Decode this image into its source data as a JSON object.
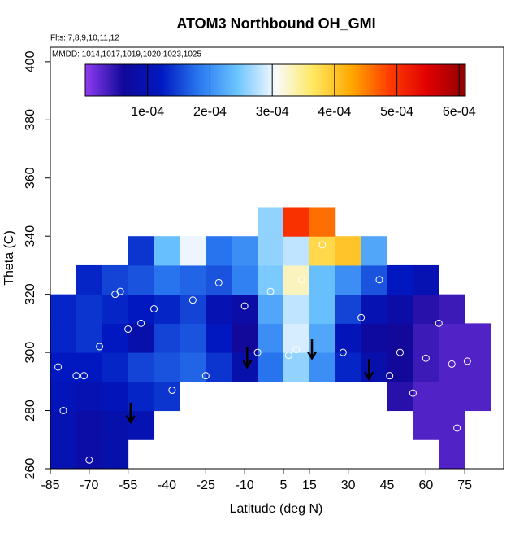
{
  "chart_data": {
    "type": "heatmap",
    "title": "ATOM3 Northbound OH_GMI",
    "annotations": [
      "Flts: 7,8,9,10,11,12",
      "MMDD: 1014,1017,1019,1020,1023,1025"
    ],
    "x_label": "Latitude (deg N)",
    "y_label": "Theta (C)",
    "xlim": [
      -85,
      90
    ],
    "ylim": [
      260,
      405
    ],
    "xticks": [
      -85,
      -70,
      -55,
      -40,
      -25,
      -10,
      5,
      15,
      30,
      45,
      60,
      75
    ],
    "yticks": [
      260,
      280,
      300,
      320,
      340,
      360,
      380,
      400
    ],
    "x": [
      -80,
      -70,
      -60,
      -50,
      -40,
      -30,
      -20,
      -10,
      0,
      10,
      20,
      30,
      40,
      50,
      60,
      70,
      80
    ],
    "y": [
      265,
      275,
      285,
      295,
      305,
      315,
      325,
      335,
      345
    ],
    "z": [
      [
        0.0001,
        8e-05,
        9e-05,
        null,
        null,
        null,
        null,
        null,
        null,
        null,
        null,
        null,
        null,
        null,
        null,
        3e-05,
        null
      ],
      [
        0.0001,
        8e-05,
        9e-05,
        0.0001,
        null,
        null,
        null,
        null,
        null,
        null,
        null,
        null,
        null,
        null,
        3e-05,
        3e-05,
        null
      ],
      [
        0.00011,
        0.0001,
        0.00011,
        0.00013,
        0.00014,
        null,
        null,
        null,
        null,
        null,
        null,
        null,
        null,
        5e-05,
        3e-05,
        3e-05,
        3e-05
      ],
      [
        0.00012,
        0.00012,
        0.00013,
        0.00015,
        0.00016,
        0.00017,
        0.00014,
        9e-05,
        0.00018,
        0.00026,
        0.0002,
        0.00013,
        9e-05,
        6e-05,
        4e-05,
        3e-05,
        3e-05
      ],
      [
        0.00013,
        0.00014,
        0.00012,
        9e-05,
        0.00015,
        0.00016,
        0.00012,
        6e-05,
        0.0002,
        0.00029,
        0.00022,
        0.00011,
        7e-05,
        6e-05,
        4e-05,
        3e-05,
        3e-05
      ],
      [
        0.00013,
        0.00014,
        0.00013,
        0.00012,
        0.00013,
        0.00015,
        0.0001,
        8e-05,
        0.00022,
        0.00028,
        0.00024,
        0.00015,
        0.0001,
        8e-05,
        5e-05,
        4e-05,
        null
      ],
      [
        null,
        0.00013,
        0.00015,
        0.00016,
        0.00018,
        0.00017,
        0.00016,
        0.00019,
        0.00025,
        0.00033,
        0.00024,
        0.0002,
        0.00016,
        0.00012,
        0.0001,
        null,
        null
      ],
      [
        null,
        null,
        null,
        0.00014,
        0.00024,
        0.0003,
        0.00018,
        0.0002,
        0.00026,
        0.00028,
        0.00038,
        0.0004,
        0.00022,
        null,
        null,
        null,
        null
      ],
      [
        null,
        null,
        null,
        null,
        null,
        null,
        null,
        null,
        0.00026,
        0.0005,
        0.00046,
        null,
        null,
        null,
        null,
        null,
        null
      ]
    ],
    "zlim": [
      0,
      0.00061
    ],
    "zticks": [
      {
        "value": 0.0001,
        "label": "1e-04"
      },
      {
        "value": 0.0002,
        "label": "2e-04"
      },
      {
        "value": 0.0003,
        "label": "3e-04"
      },
      {
        "value": 0.0004,
        "label": "4e-04"
      },
      {
        "value": 0.0005,
        "label": "5e-04"
      },
      {
        "value": 0.0006,
        "label": "6e-04"
      }
    ],
    "colorscale": [
      "#8f3cf0",
      "#10089a",
      "#0018c0",
      "#2a78f0",
      "#6cc4ff",
      "#f8fbff",
      "#ffe860",
      "#ffa800",
      "#ff3c00",
      "#e00000",
      "#900000"
    ],
    "points": {
      "x": [
        -82,
        -80,
        -75,
        -72,
        -70,
        -66,
        -60,
        -58,
        -55,
        -50,
        -45,
        -38,
        -30,
        -25,
        -20,
        -10,
        -5,
        0,
        7,
        10,
        12,
        20,
        28,
        35,
        42,
        46,
        50,
        55,
        60,
        65,
        70,
        72,
        76
      ],
      "y": [
        295,
        280,
        292,
        292,
        263,
        302,
        320,
        321,
        308,
        310,
        315,
        287,
        318,
        292,
        324,
        316,
        300,
        321,
        299,
        301,
        325,
        337,
        300,
        312,
        325,
        292,
        300,
        286,
        298,
        310,
        296,
        274,
        297
      ]
    },
    "arrows": {
      "x": [
        -54,
        -9,
        16,
        38
      ],
      "y": [
        276,
        295,
        298,
        291
      ]
    }
  }
}
